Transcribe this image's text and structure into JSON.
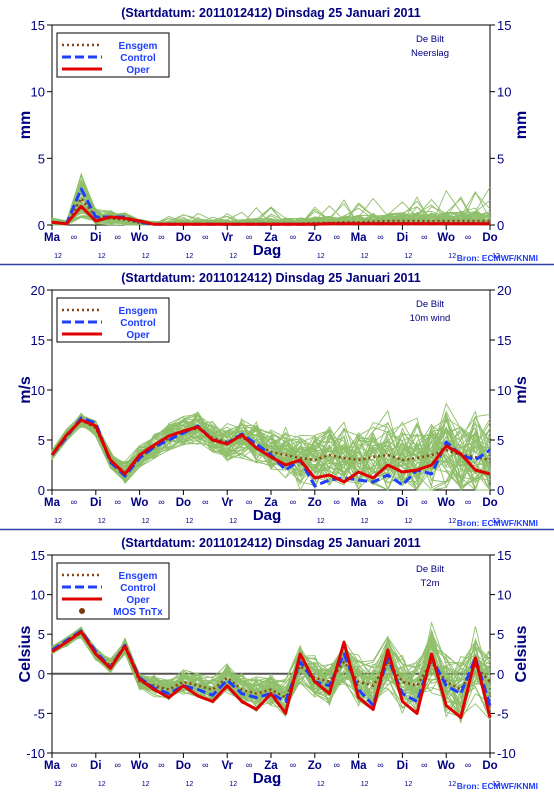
{
  "colors": {
    "ensemble": "#8fbf6a",
    "ensgem": "#8b4513",
    "control": "#1f3fff",
    "oper": "#e00000",
    "mos": "#7a3b10",
    "text": "#000080",
    "axis": "#000000",
    "separator": "#2c3f9e"
  },
  "chart_data": [
    {
      "type": "line",
      "title": "(Startdatum: 2011012412)   Dinsdag   25 Januari   2011",
      "location": "De Bilt",
      "variable": "Neerslag",
      "ylabel": "mm",
      "xlabel": "Dag",
      "ylim": [
        0,
        15
      ],
      "yticks": [
        0,
        5,
        10,
        15
      ],
      "zero_line": false,
      "source": "Bron: ECMWF/KNMI",
      "legend": [
        "Ensgem",
        "Control",
        "Oper"
      ],
      "x_day_labels": [
        "Ma",
        "Di",
        "Wo",
        "Do",
        "Vr",
        "Za",
        "Zo",
        "Ma",
        "Di",
        "Wo",
        "Do"
      ],
      "x_sub_labels": [
        "12",
        "12",
        "12",
        "12",
        "12",
        "12",
        "12",
        "12",
        "12",
        "12",
        "12"
      ],
      "ensemble_count": 50,
      "series": [
        {
          "name": "Ensgem",
          "values": [
            0.2,
            0.1,
            2.0,
            0.6,
            0.5,
            0.4,
            0.15,
            0.05,
            0.05,
            0.05,
            0.05,
            0.05,
            0.05,
            0.05,
            0.1,
            0.1,
            0.1,
            0.1,
            0.15,
            0.15,
            0.2,
            0.2,
            0.25,
            0.3,
            0.3,
            0.3,
            0.3,
            0.3,
            0.3,
            0.3,
            0.3
          ]
        },
        {
          "name": "Control",
          "values": [
            0.2,
            0.1,
            2.7,
            0.6,
            0.6,
            0.6,
            0.2,
            0.05,
            0.05,
            0.05,
            0.05,
            0.05,
            0.05,
            0.05,
            0.05,
            0.05,
            0.05,
            0.05,
            0.05,
            0.1,
            0.1,
            0.1,
            0.1,
            0.1,
            0.1,
            0.1,
            0.1,
            0.1,
            0.1,
            0.1,
            0.1
          ]
        },
        {
          "name": "Oper",
          "values": [
            0.2,
            0.1,
            1.4,
            0.3,
            0.6,
            0.5,
            0.3,
            0.05,
            0.05,
            0.05,
            0.05,
            0.05,
            0.05,
            0.05,
            0.05,
            0.05,
            0.05,
            0.05,
            0.05,
            0.1,
            0.1,
            0.1,
            0.1,
            0.1,
            0.1,
            0.1,
            0.1,
            0.1,
            0.1,
            0.1,
            0.1
          ]
        }
      ]
    },
    {
      "type": "line",
      "title": "(Startdatum: 2011012412)   Dinsdag   25 Januari   2011",
      "location": "De Bilt",
      "variable": "10m wind",
      "ylabel": "m/s",
      "xlabel": "Dag",
      "ylim": [
        0,
        20
      ],
      "yticks": [
        0,
        5,
        10,
        15,
        20
      ],
      "zero_line": false,
      "source": "Bron: ECMWF/KNMI",
      "legend": [
        "Ensgem",
        "Control",
        "Oper"
      ],
      "x_day_labels": [
        "Ma",
        "Di",
        "Wo",
        "Do",
        "Vr",
        "Za",
        "Zo",
        "Ma",
        "Di",
        "Wo",
        "Do"
      ],
      "x_sub_labels": [
        "12",
        "12",
        "12",
        "12",
        "12",
        "12",
        "12",
        "12",
        "12",
        "12",
        "12"
      ],
      "ensemble_count": 50,
      "series": [
        {
          "name": "Ensgem",
          "values": [
            3.5,
            5.5,
            7.0,
            6.2,
            3.0,
            1.7,
            3.2,
            4.3,
            5.2,
            5.8,
            6.2,
            5.2,
            4.8,
            5.3,
            4.5,
            3.8,
            3.5,
            3.2,
            3.0,
            3.5,
            3.2,
            3.0,
            3.3,
            3.5,
            3.0,
            3.2,
            3.5,
            4.0,
            3.5,
            3.3,
            3.0
          ]
        },
        {
          "name": "Control",
          "values": [
            3.5,
            5.3,
            7.2,
            6.7,
            2.8,
            1.4,
            3.2,
            4.3,
            5.0,
            5.7,
            6.4,
            5.0,
            4.7,
            5.6,
            4.6,
            3.5,
            2.0,
            3.0,
            0.4,
            1.0,
            1.2,
            1.0,
            0.8,
            1.5,
            0.5,
            2.0,
            1.6,
            4.8,
            3.5,
            3.0,
            4.0
          ]
        },
        {
          "name": "Oper",
          "values": [
            3.5,
            5.5,
            7.0,
            6.4,
            3.0,
            1.6,
            3.5,
            4.5,
            5.4,
            5.9,
            6.3,
            5.0,
            4.6,
            5.5,
            4.2,
            3.3,
            2.5,
            3.0,
            1.2,
            1.5,
            0.8,
            1.8,
            1.2,
            2.5,
            1.8,
            2.0,
            2.5,
            4.4,
            3.6,
            2.0,
            1.6
          ]
        }
      ]
    },
    {
      "type": "line",
      "title": "(Startdatum: 2011012412)   Dinsdag   25 Januari   2011",
      "location": "De Bilt",
      "variable": "T2m",
      "ylabel": "Celsius",
      "xlabel": "Dag",
      "ylim": [
        -10,
        15
      ],
      "yticks": [
        -10,
        -5,
        0,
        5,
        10,
        15
      ],
      "zero_line": true,
      "source": "Bron: ECMWF/KNMI",
      "legend": [
        "Ensgem",
        "Control",
        "Oper",
        "MOS TnTx"
      ],
      "x_day_labels": [
        "Ma",
        "Di",
        "Wo",
        "Do",
        "Vr",
        "Za",
        "Zo",
        "Ma",
        "Di",
        "Wo",
        "Do"
      ],
      "x_sub_labels": [
        "12",
        "12",
        "12",
        "12",
        "12",
        "12",
        "12",
        "12",
        "12",
        "12",
        "12"
      ],
      "ensemble_count": 50,
      "series": [
        {
          "name": "Ensgem",
          "values": [
            3.0,
            4.0,
            5.2,
            2.5,
            1.0,
            3.5,
            -1.0,
            -1.5,
            -2.0,
            -1.0,
            -1.5,
            -2.0,
            -0.5,
            -2.0,
            -2.5,
            -2.0,
            -3.0,
            1.0,
            -0.5,
            -1.0,
            1.5,
            -1.0,
            -1.5,
            1.5,
            -1.0,
            -1.5,
            1.5,
            -1.0,
            -2.0,
            1.0,
            -1.0
          ]
        },
        {
          "name": "Control",
          "values": [
            3.0,
            4.2,
            5.4,
            2.8,
            0.8,
            3.6,
            -0.5,
            -1.8,
            -2.5,
            -1.5,
            -2.0,
            -2.7,
            -0.8,
            -2.5,
            -3.0,
            -2.5,
            -3.5,
            1.5,
            -1.0,
            -1.5,
            2.5,
            -2.0,
            -4.0,
            2.0,
            -2.5,
            -3.5,
            2.0,
            -1.5,
            -2.5,
            2.0,
            -4.0
          ]
        },
        {
          "name": "Oper",
          "values": [
            2.8,
            4.0,
            5.3,
            2.5,
            0.7,
            3.5,
            -0.7,
            -2.0,
            -3.0,
            -1.5,
            -2.8,
            -3.5,
            -1.5,
            -3.5,
            -4.5,
            -2.5,
            -5.0,
            2.5,
            -1.0,
            -2.5,
            4.0,
            -3.0,
            -4.5,
            3.0,
            -3.5,
            -5.0,
            2.5,
            -4.0,
            -5.5,
            2.0,
            -5.5
          ]
        }
      ]
    }
  ]
}
